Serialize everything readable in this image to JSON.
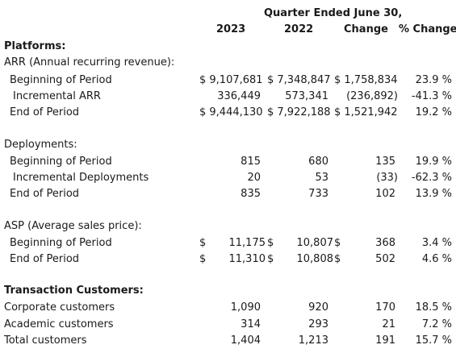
{
  "header": {
    "group_title": "Quarter Ended June 30,",
    "col_2023": "2023",
    "col_2022": "2022",
    "col_change": "Change",
    "col_pct": "% Change"
  },
  "platforms": {
    "title": "Platforms:",
    "arr_label": "ARR (Annual recurring revenue):",
    "rows": [
      {
        "label": "Beginning of Period",
        "v2023": "$ 9,107,681",
        "v2022": "$ 7,348,847",
        "change": "$ 1,758,834",
        "pct": "23.9 %"
      },
      {
        "label": "Incremental ARR",
        "v2023": "336,449",
        "v2022": "573,341",
        "change": "(236,892)",
        "pct": "-41.3 %"
      },
      {
        "label": "End of Period",
        "v2023": "$ 9,444,130",
        "v2022": "$ 7,922,188",
        "change": "$ 1,521,942",
        "pct": "19.2 %"
      }
    ]
  },
  "deployments": {
    "title": "Deployments:",
    "rows": [
      {
        "label": "Beginning of Period",
        "v2023": "815",
        "v2022": "680",
        "change": "135",
        "pct": "19.9 %"
      },
      {
        "label": "Incremental Deployments",
        "v2023": "20",
        "v2022": "53",
        "change": "(33)",
        "pct": "-62.3 %"
      },
      {
        "label": "End of Period",
        "v2023": "835",
        "v2022": "733",
        "change": "102",
        "pct": "13.9 %"
      }
    ]
  },
  "asp": {
    "title": "ASP (Average sales price):",
    "dollar": "$",
    "rows": [
      {
        "label": "Beginning of Period",
        "v2023": "11,175",
        "v2022": "10,807",
        "change": "368",
        "pct": "3.4 %"
      },
      {
        "label": "End of Period",
        "v2023": "11,310",
        "v2022": "10,808",
        "change": "502",
        "pct": "4.6 %"
      }
    ]
  },
  "customers": {
    "title": "Transaction Customers:",
    "rows": [
      {
        "label": "Corporate customers",
        "v2023": "1,090",
        "v2022": "920",
        "change": "170",
        "pct": "18.5 %"
      },
      {
        "label": "Academic customers",
        "v2023": "314",
        "v2022": "293",
        "change": "21",
        "pct": "7.2 %"
      },
      {
        "label": "Total customers",
        "v2023": "1,404",
        "v2022": "1,213",
        "change": "191",
        "pct": "15.7 %"
      }
    ]
  }
}
